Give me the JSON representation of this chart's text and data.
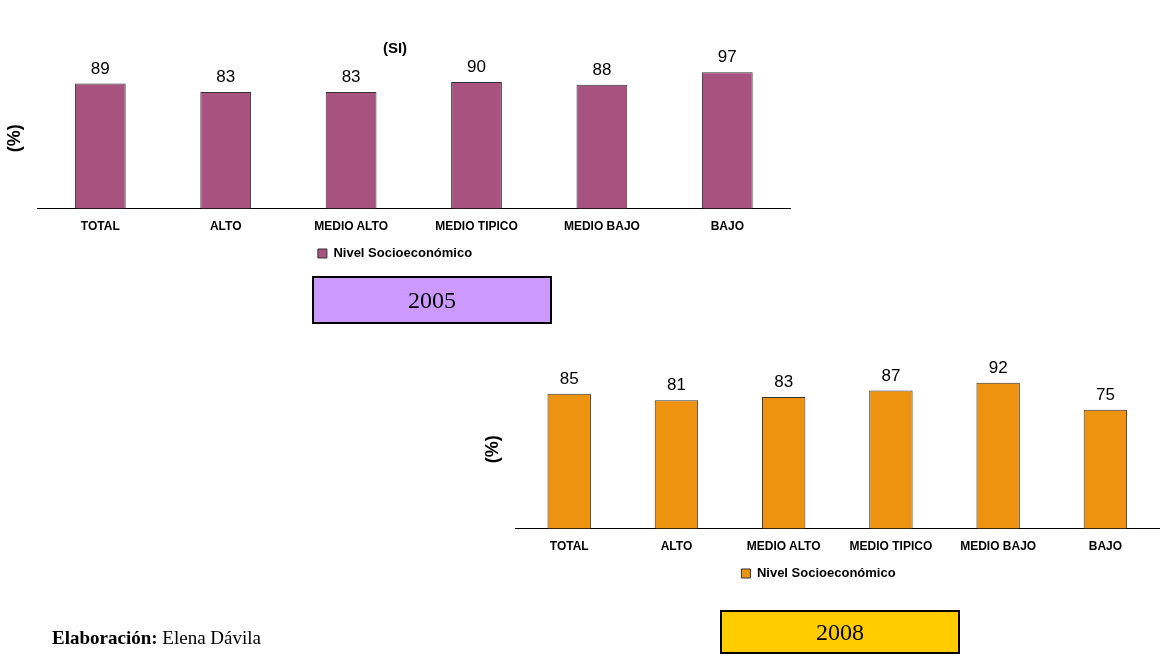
{
  "chart_data": [
    {
      "type": "bar",
      "title": "(SI)",
      "ylabel": "(%)",
      "categories": [
        "TOTAL",
        "ALTO",
        "MEDIO ALTO",
        "MEDIO TIPICO",
        "MEDIO BAJO",
        "BAJO"
      ],
      "series": [
        {
          "name": "Nivel Socioeconómico",
          "color": "#a8527f",
          "values": [
            89,
            83,
            83,
            90,
            88,
            97
          ]
        }
      ],
      "data_labels": true,
      "legend": "bottom",
      "grid": false,
      "annotations": [
        "2005"
      ]
    },
    {
      "type": "bar",
      "ylabel": "(%)",
      "categories": [
        "TOTAL",
        "ALTO",
        "MEDIO ALTO",
        "MEDIO TIPICO",
        "MEDIO BAJO",
        "BAJO"
      ],
      "series": [
        {
          "name": "Nivel Socioeconómico",
          "color": "#ee9310",
          "values": [
            85,
            81,
            83,
            87,
            92,
            75
          ]
        }
      ],
      "data_labels": true,
      "legend": "bottom",
      "grid": false,
      "annotations": [
        "2008",
        "Elaboración: Elena Dávila"
      ]
    }
  ]
}
